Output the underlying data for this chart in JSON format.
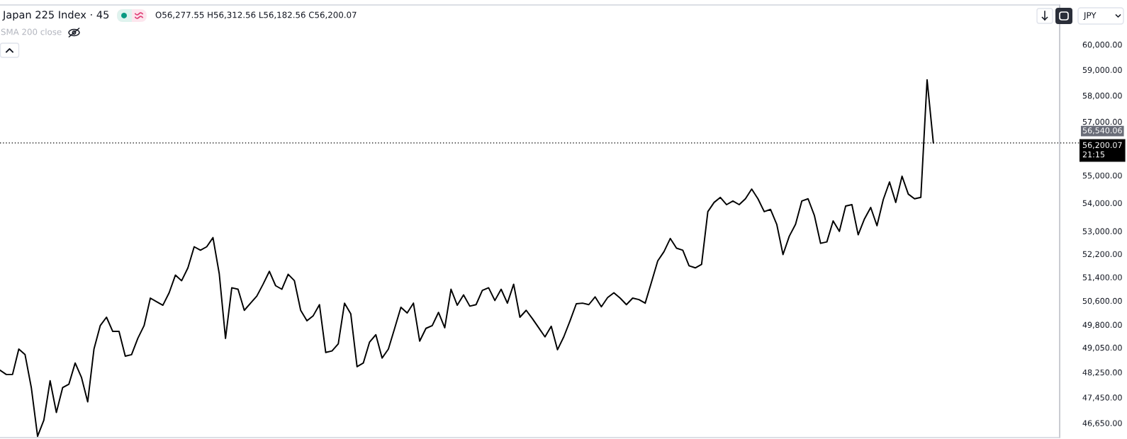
{
  "chart_data": {
    "type": "line",
    "title": "Japan 225 Index · 45",
    "categories": [
      null,
      null,
      null,
      null,
      null,
      null,
      null,
      null,
      null,
      null,
      null,
      null,
      null,
      null,
      null,
      null,
      null,
      null,
      null,
      null,
      null,
      null,
      null,
      null,
      null,
      null,
      null,
      null,
      null,
      null,
      null,
      null,
      null,
      null,
      null,
      null,
      null,
      null,
      null,
      null,
      null,
      null,
      null,
      null,
      null,
      null,
      null,
      null,
      null,
      null,
      null,
      null,
      null,
      null,
      null,
      null,
      null,
      null,
      null,
      null,
      null,
      null,
      null,
      null,
      null,
      null,
      null,
      null,
      null,
      null,
      null,
      null,
      null,
      null,
      null,
      null,
      null,
      null,
      null,
      null,
      null,
      null,
      null,
      null,
      null,
      null,
      null,
      null,
      null,
      null,
      null,
      null,
      null,
      null,
      null,
      null,
      null,
      null,
      null,
      null,
      null,
      null,
      null,
      null,
      null,
      null,
      null,
      null,
      null,
      null,
      null,
      null,
      null,
      null,
      null,
      null,
      null,
      null,
      null,
      null,
      null,
      null,
      null,
      null,
      null,
      null,
      null,
      null,
      null,
      null,
      null,
      null,
      null,
      null,
      null,
      null,
      null,
      null,
      null,
      null,
      null,
      null,
      null,
      null,
      null,
      null,
      null,
      null,
      null,
      null
    ],
    "series": [
      {
        "color": "#000000",
        "values": [
          48320,
          48180,
          48180,
          49000,
          48820,
          47760,
          46240,
          46740,
          47980,
          46980,
          47760,
          47870,
          48550,
          48090,
          47310,
          49000,
          49770,
          50050,
          49580,
          49580,
          48770,
          48820,
          49350,
          49770,
          50690,
          50570,
          50450,
          50870,
          51470,
          51280,
          51720,
          52450,
          52330,
          52450,
          52770,
          51520,
          49350,
          51040,
          50990,
          50280,
          50520,
          50760,
          51160,
          51600,
          51110,
          50990,
          51500,
          51280,
          50280,
          49930,
          50100,
          50470,
          48890,
          48940,
          49170,
          50520,
          50160,
          48430,
          48550,
          49230,
          49470,
          48710,
          49000,
          49680,
          50380,
          50190,
          50520,
          49260,
          49680,
          49770,
          50210,
          49700,
          50990,
          50450,
          50800,
          50420,
          50470,
          50950,
          51040,
          50610,
          50990,
          50520,
          51160,
          50050,
          50280,
          50000,
          49700,
          49400,
          49750,
          48980,
          49400,
          49930,
          50500,
          50520,
          50470,
          50730,
          50400,
          50710,
          50870,
          50690,
          50470,
          50690,
          50640,
          50520,
          51230,
          51960,
          52280,
          52740,
          52400,
          52330,
          51790,
          51720,
          51840,
          53690,
          54020,
          54200,
          53940,
          54070,
          53940,
          54150,
          54500,
          54150,
          53690,
          53770,
          53240,
          52180,
          52820,
          53240,
          54070,
          54150,
          53560,
          52570,
          52620,
          53360,
          52990,
          53890,
          53940,
          52870,
          53430,
          53840,
          53190,
          54120,
          54760,
          54020,
          54970,
          54320,
          54150,
          54200,
          58610,
          56200.07
        ]
      }
    ],
    "log": true,
    "ylim": [
      46200,
      61600
    ],
    "yticks": [
      {
        "value": 46650,
        "label": "46,650.00"
      },
      {
        "value": 47450,
        "label": "47,450.00"
      },
      {
        "value": 48250,
        "label": "48,250.00"
      },
      {
        "value": 49050,
        "label": "49,050.00"
      },
      {
        "value": 49800,
        "label": "49,800.00"
      },
      {
        "value": 50600,
        "label": "50,600.00"
      },
      {
        "value": 51400,
        "label": "51,400.00"
      },
      {
        "value": 52200,
        "label": "52,200.00"
      },
      {
        "value": 53000,
        "label": "53,000.00"
      },
      {
        "value": 54000,
        "label": "54,000.00"
      },
      {
        "value": 55000,
        "label": "55,000.00"
      },
      {
        "value": 57000,
        "label": "57,000.00"
      },
      {
        "value": 58000,
        "label": "58,000.00"
      },
      {
        "value": 59000,
        "label": "59,000.00"
      },
      {
        "value": 60000,
        "label": "60,000.00"
      }
    ],
    "tick_labels": "y",
    "ref_lines": [
      {
        "axis": "y",
        "value": 56200.07,
        "label": "56,200.07\n21:15",
        "color": "#000000",
        "line_style": "dotted"
      }
    ],
    "annotations": [
      "O56,277.55 H56,312.56 L56,182.56 C56,200.07",
      "SMA 200 close",
      "JPY",
      "56,540.06"
    ]
  }
}
